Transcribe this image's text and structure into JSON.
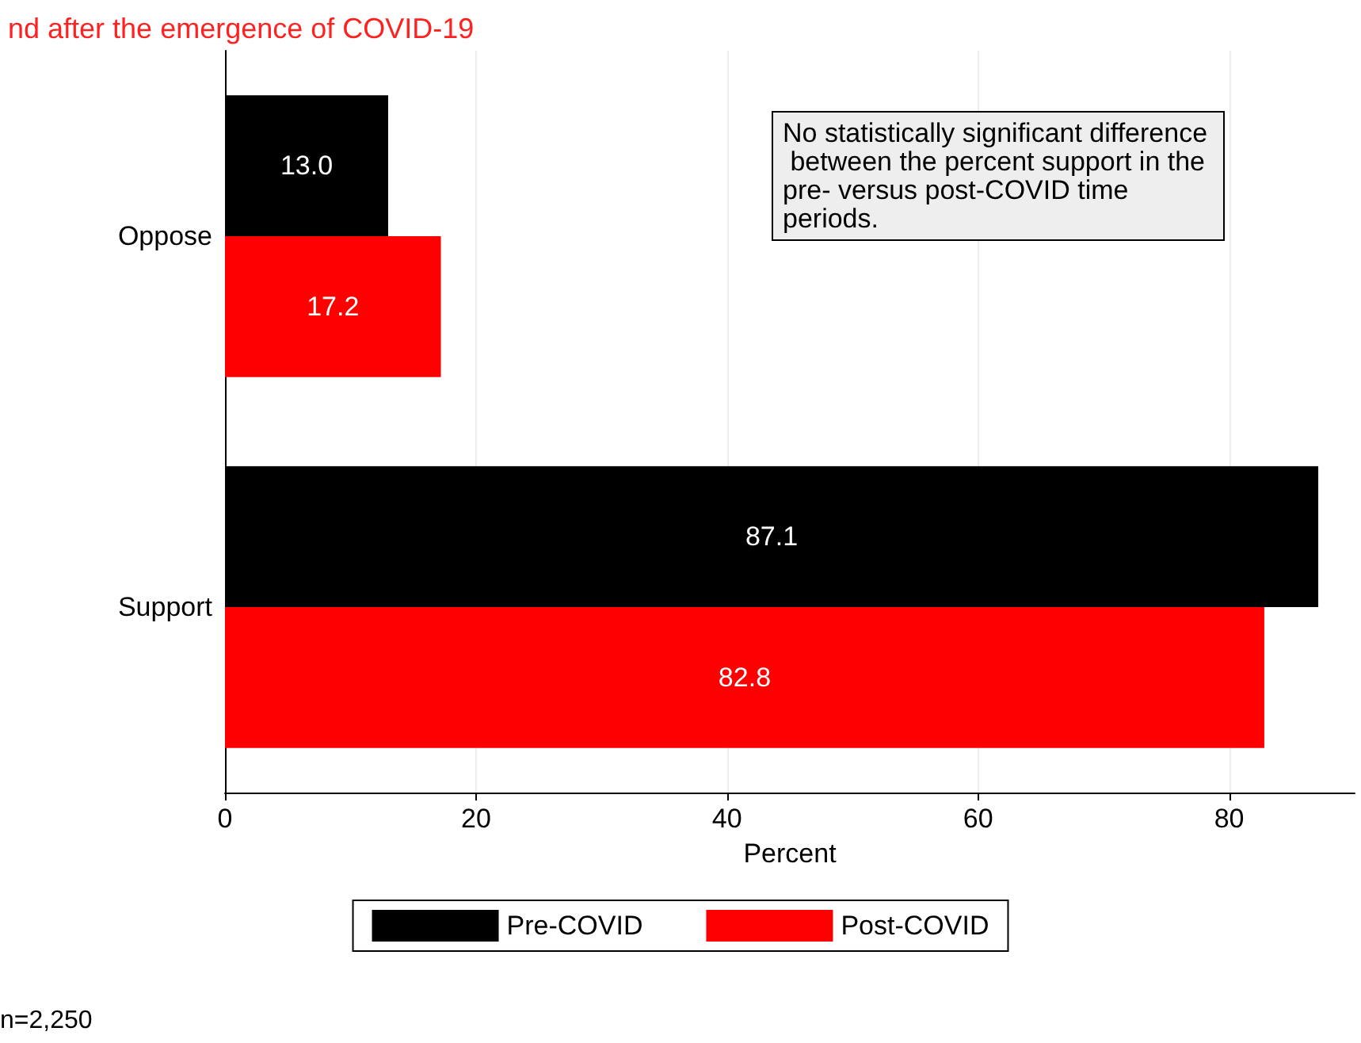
{
  "chart_data": {
    "type": "bar",
    "orientation": "horizontal",
    "title": "nd after the emergence of COVID-19",
    "categories": [
      "Oppose",
      "Support"
    ],
    "series": [
      {
        "name": "Pre-COVID",
        "color": "#000000",
        "values": [
          13.0,
          87.1
        ],
        "value_labels": [
          "13.0",
          "87.1"
        ]
      },
      {
        "name": "Post-COVID",
        "color": "#ff0000",
        "values": [
          17.2,
          82.8
        ],
        "value_labels": [
          "17.2",
          "82.8"
        ]
      }
    ],
    "xlabel": "Percent",
    "xlim": [
      0,
      90
    ],
    "xticks": [
      0,
      20,
      40,
      60,
      80
    ],
    "grid": "x",
    "legend": "bottom",
    "annotations": [
      "No statistically significant difference between the percent support in the pre- versus post-COVID time periods.",
      "n=2,250"
    ]
  }
}
